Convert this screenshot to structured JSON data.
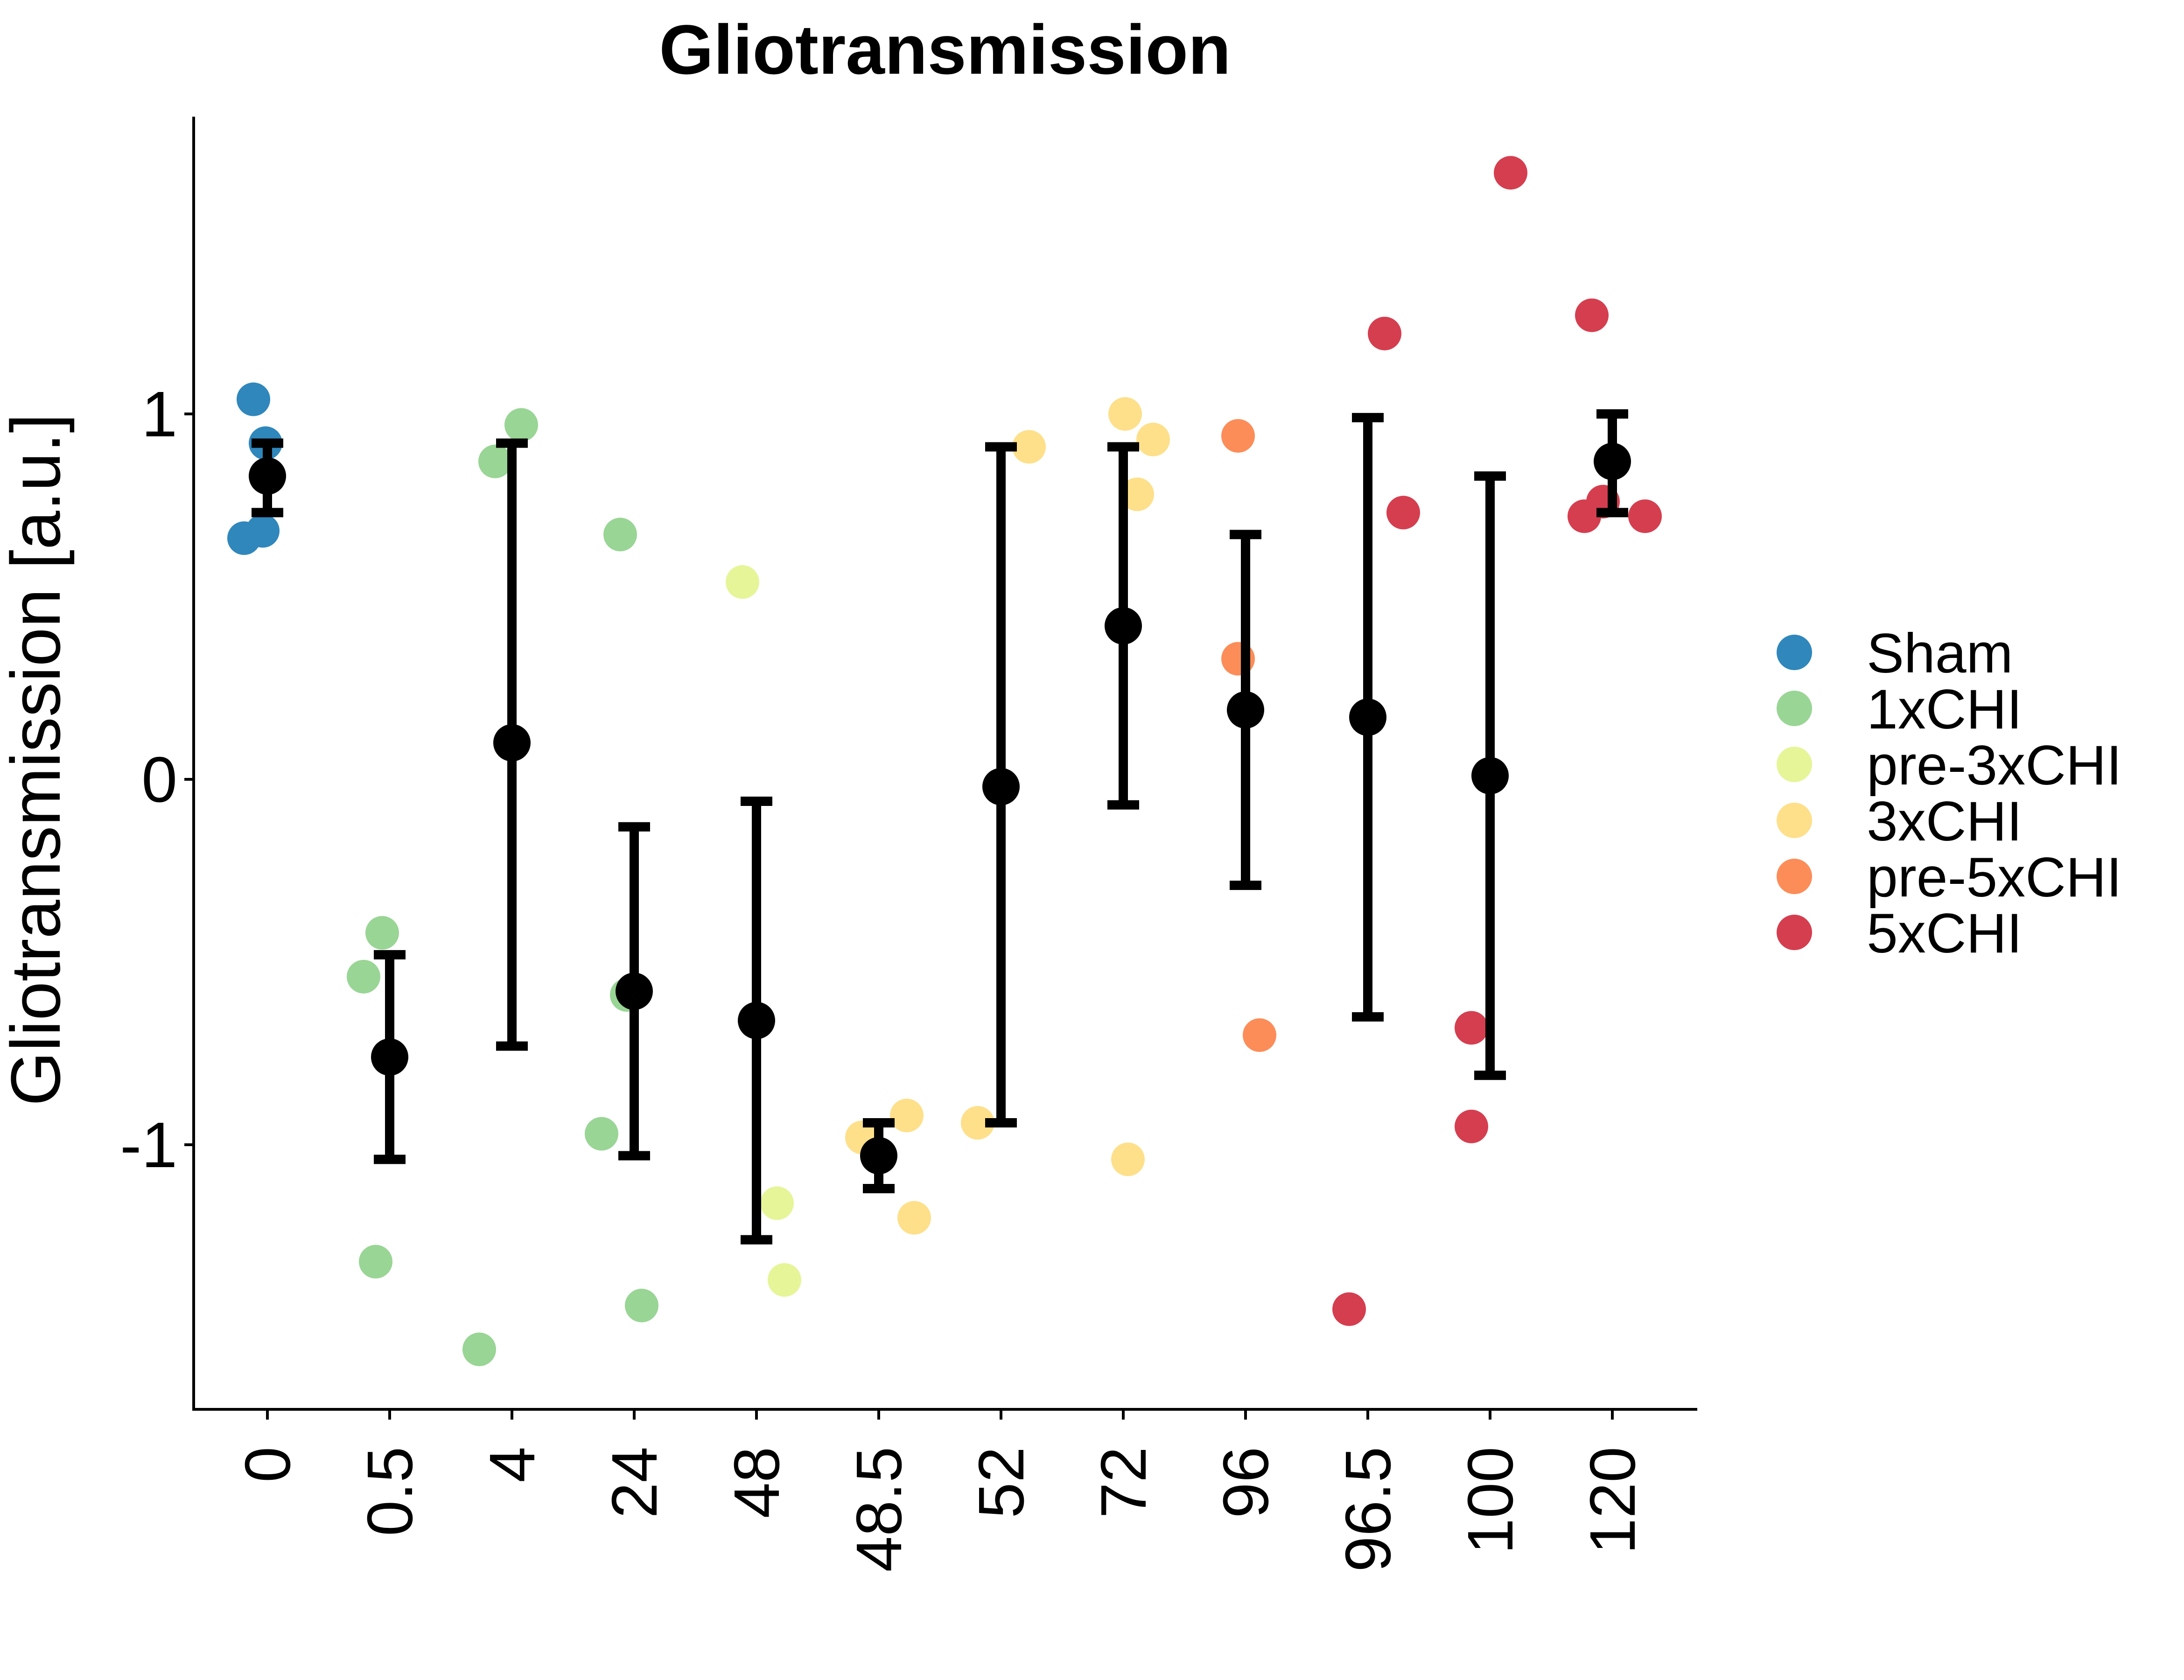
{
  "chart_data": {
    "type": "scatter",
    "title": "Gliotransmission",
    "xlabel": "",
    "ylabel": "Gliotransmission [a.u.]",
    "categories": [
      "0",
      "0.5",
      "4",
      "24",
      "48",
      "48.5",
      "52",
      "72",
      "96",
      "96.5",
      "100",
      "120"
    ],
    "yticks": [
      {
        "value": 1,
        "label": "1"
      },
      {
        "value": 0,
        "label": "0"
      },
      {
        "value": -1,
        "label": "-1"
      }
    ],
    "ylim": [
      -1.72,
      1.8
    ],
    "grid": false,
    "legend_position": "right",
    "groups": [
      {
        "name": "Sham",
        "color": "#2F87BC"
      },
      {
        "name": "1xCHI",
        "color": "#99D595"
      },
      {
        "name": "pre-3xCHI",
        "color": "#E6F598"
      },
      {
        "name": "3xCHI",
        "color": "#FEE08B"
      },
      {
        "name": "pre-5xCHI",
        "color": "#FC8D59"
      },
      {
        "name": "5xCHI",
        "color": "#D53E4F"
      }
    ],
    "points": [
      {
        "group": "Sham",
        "x": "0",
        "offset": -0.25,
        "y": 0.66
      },
      {
        "group": "Sham",
        "x": "0",
        "offset": -0.15,
        "y": 1.04
      },
      {
        "group": "Sham",
        "x": "0",
        "offset": -0.02,
        "y": 0.92
      },
      {
        "group": "Sham",
        "x": "0",
        "offset": -0.05,
        "y": 0.68
      },
      {
        "group": "1xCHI",
        "x": "0.5",
        "offset": -0.28,
        "y": -0.54
      },
      {
        "group": "1xCHI",
        "x": "0.5",
        "offset": -0.08,
        "y": -0.42
      },
      {
        "group": "1xCHI",
        "x": "0.5",
        "offset": -0.15,
        "y": -1.32
      },
      {
        "group": "1xCHI",
        "x": "4",
        "offset": -0.35,
        "y": -1.56
      },
      {
        "group": "1xCHI",
        "x": "4",
        "offset": -0.18,
        "y": 0.87
      },
      {
        "group": "1xCHI",
        "x": "4",
        "offset": 0.1,
        "y": 0.97
      },
      {
        "group": "1xCHI",
        "x": "24",
        "offset": -0.35,
        "y": -0.97
      },
      {
        "group": "1xCHI",
        "x": "24",
        "offset": -0.15,
        "y": 0.67
      },
      {
        "group": "1xCHI",
        "x": "24",
        "offset": -0.08,
        "y": -0.59
      },
      {
        "group": "1xCHI",
        "x": "24",
        "offset": 0.08,
        "y": -1.44
      },
      {
        "group": "pre-3xCHI",
        "x": "48",
        "offset": -0.15,
        "y": 0.54
      },
      {
        "group": "pre-3xCHI",
        "x": "48",
        "offset": 0.22,
        "y": -1.16
      },
      {
        "group": "pre-3xCHI",
        "x": "48",
        "offset": 0.3,
        "y": -1.37
      },
      {
        "group": "3xCHI",
        "x": "48.5",
        "offset": -0.18,
        "y": -0.98
      },
      {
        "group": "3xCHI",
        "x": "48.5",
        "offset": 0.3,
        "y": -0.92
      },
      {
        "group": "3xCHI",
        "x": "48.5",
        "offset": 0.38,
        "y": -1.2
      },
      {
        "group": "3xCHI",
        "x": "52",
        "offset": -0.25,
        "y": -0.94
      },
      {
        "group": "3xCHI",
        "x": "52",
        "offset": 0.3,
        "y": 0.91
      },
      {
        "group": "3xCHI",
        "x": "72",
        "offset": 0.02,
        "y": 1.0
      },
      {
        "group": "3xCHI",
        "x": "72",
        "offset": 0.32,
        "y": 0.93
      },
      {
        "group": "3xCHI",
        "x": "72",
        "offset": 0.15,
        "y": 0.78
      },
      {
        "group": "3xCHI",
        "x": "72",
        "offset": 0.05,
        "y": -1.04
      },
      {
        "group": "pre-5xCHI",
        "x": "96",
        "offset": -0.08,
        "y": 0.94
      },
      {
        "group": "pre-5xCHI",
        "x": "96",
        "offset": -0.08,
        "y": 0.33
      },
      {
        "group": "pre-5xCHI",
        "x": "96",
        "offset": 0.15,
        "y": -0.7
      },
      {
        "group": "5xCHI",
        "x": "96.5",
        "offset": -0.2,
        "y": -1.45
      },
      {
        "group": "5xCHI",
        "x": "96.5",
        "offset": 0.18,
        "y": 1.22
      },
      {
        "group": "5xCHI",
        "x": "96.5",
        "offset": 0.38,
        "y": 0.73
      },
      {
        "group": "5xCHI",
        "x": "100",
        "offset": -0.2,
        "y": -0.68
      },
      {
        "group": "5xCHI",
        "x": "100",
        "offset": -0.2,
        "y": -0.95
      },
      {
        "group": "5xCHI",
        "x": "100",
        "offset": 0.22,
        "y": 1.66
      },
      {
        "group": "5xCHI",
        "x": "120",
        "offset": -0.3,
        "y": 0.72
      },
      {
        "group": "5xCHI",
        "x": "120",
        "offset": -0.22,
        "y": 1.27
      },
      {
        "group": "5xCHI",
        "x": "120",
        "offset": -0.1,
        "y": 0.76
      },
      {
        "group": "5xCHI",
        "x": "120",
        "offset": 0.35,
        "y": 0.72
      }
    ],
    "summary": [
      {
        "x": "0",
        "mean": 0.83,
        "lower": 0.73,
        "upper": 0.92
      },
      {
        "x": "0.5",
        "mean": -0.76,
        "lower": -1.04,
        "upper": -0.48
      },
      {
        "x": "4",
        "mean": 0.1,
        "lower": -0.73,
        "upper": 0.92
      },
      {
        "x": "24",
        "mean": -0.58,
        "lower": -1.03,
        "upper": -0.13
      },
      {
        "x": "48",
        "mean": -0.66,
        "lower": -1.26,
        "upper": -0.06
      },
      {
        "x": "48.5",
        "mean": -1.03,
        "lower": -1.12,
        "upper": -0.94
      },
      {
        "x": "52",
        "mean": -0.02,
        "lower": -0.94,
        "upper": 0.91
      },
      {
        "x": "72",
        "mean": 0.42,
        "lower": -0.07,
        "upper": 0.91
      },
      {
        "x": "96",
        "mean": 0.19,
        "lower": -0.29,
        "upper": 0.67
      },
      {
        "x": "96.5",
        "mean": 0.17,
        "lower": -0.65,
        "upper": 0.99
      },
      {
        "x": "100",
        "mean": 0.01,
        "lower": -0.81,
        "upper": 0.83
      },
      {
        "x": "120",
        "mean": 0.87,
        "lower": 0.73,
        "upper": 1.0
      }
    ]
  }
}
